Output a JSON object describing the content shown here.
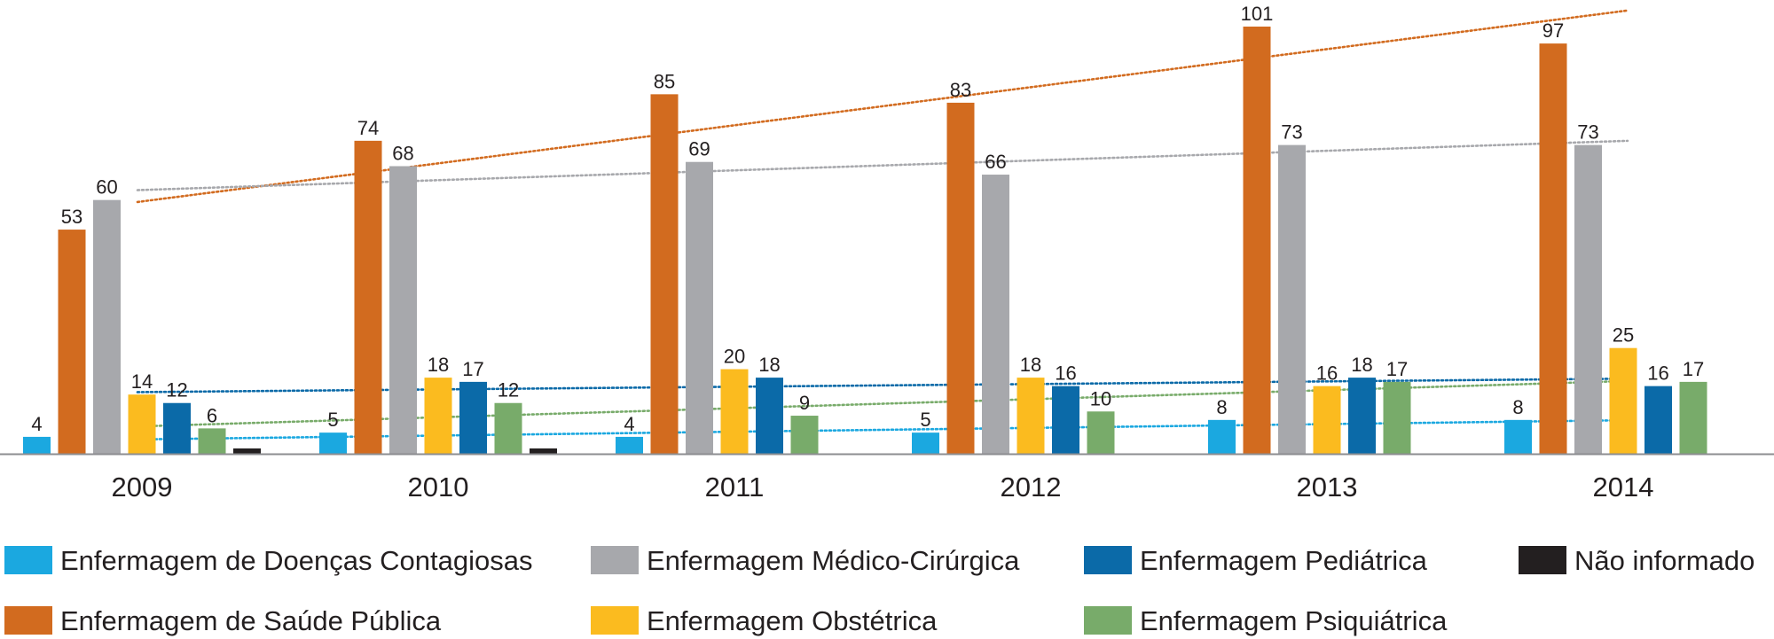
{
  "chart_data": {
    "type": "bar",
    "title": "",
    "xlabel": "",
    "ylabel": "",
    "ylim": [
      0,
      101
    ],
    "grid": false,
    "legend_position": "bottom",
    "categories": [
      "2009",
      "2010",
      "2011",
      "2012",
      "2013",
      "2014"
    ],
    "series": [
      {
        "key": "doencas",
        "name": "Enfermagem de Doenças Contagiosas",
        "color": "#1ba8e0",
        "values": [
          4,
          5,
          4,
          5,
          8,
          8
        ],
        "trendline": true
      },
      {
        "key": "saude",
        "name": "Enfermagem de Saúde Pública",
        "color": "#d26b1f",
        "values": [
          53,
          74,
          85,
          83,
          101,
          97
        ],
        "trendline": true
      },
      {
        "key": "medico",
        "name": "Enfermagem Médico-Cirúrgica",
        "color": "#a7a8ac",
        "values": [
          60,
          68,
          69,
          66,
          73,
          73
        ],
        "trendline": true
      },
      {
        "key": "obstetrica",
        "name": "Enfermagem Obstétrica",
        "color": "#fbbb1f",
        "values": [
          14,
          18,
          20,
          18,
          16,
          25
        ],
        "trendline": false
      },
      {
        "key": "pediatrica",
        "name": "Enfermagem Pediátrica",
        "color": "#0b6aa8",
        "values": [
          12,
          17,
          18,
          16,
          18,
          16
        ],
        "trendline": true
      },
      {
        "key": "psiquiatrica",
        "name": "Enfermagem Psiquiátrica",
        "color": "#78ab6a",
        "values": [
          6,
          12,
          9,
          10,
          17,
          17
        ],
        "trendline": true
      },
      {
        "key": "nao",
        "name": "Não informado",
        "color": "#231f20",
        "values": [
          1,
          1,
          null,
          null,
          null,
          null
        ],
        "trendline": false
      }
    ]
  }
}
